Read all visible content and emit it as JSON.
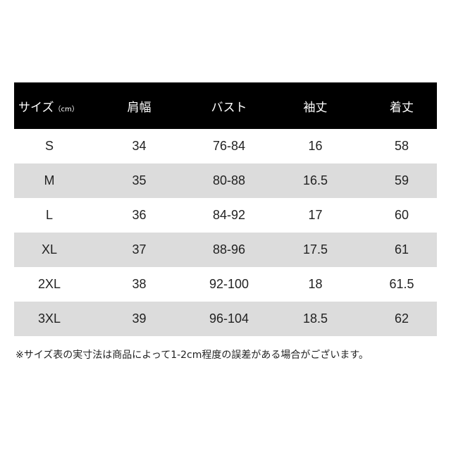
{
  "table": {
    "headers": [
      "サイズ",
      "肩幅",
      "バスト",
      "袖丈",
      "着丈"
    ],
    "header_unit": "（cm）",
    "rows": [
      [
        "S",
        "34",
        "76-84",
        "16",
        "58"
      ],
      [
        "M",
        "35",
        "80-88",
        "16.5",
        "59"
      ],
      [
        "L",
        "36",
        "84-92",
        "17",
        "60"
      ],
      [
        "XL",
        "37",
        "88-96",
        "17.5",
        "61"
      ],
      [
        "2XL",
        "38",
        "92-100",
        "18",
        "61.5"
      ],
      [
        "3XL",
        "39",
        "96-104",
        "18.5",
        "62"
      ]
    ],
    "colors": {
      "header_bg": "#000000",
      "alt_row_bg": "#dcdcdc"
    }
  },
  "note": "※サイズ表の実寸法は商品によって1-2cm程度の誤差がある場合がございます。"
}
